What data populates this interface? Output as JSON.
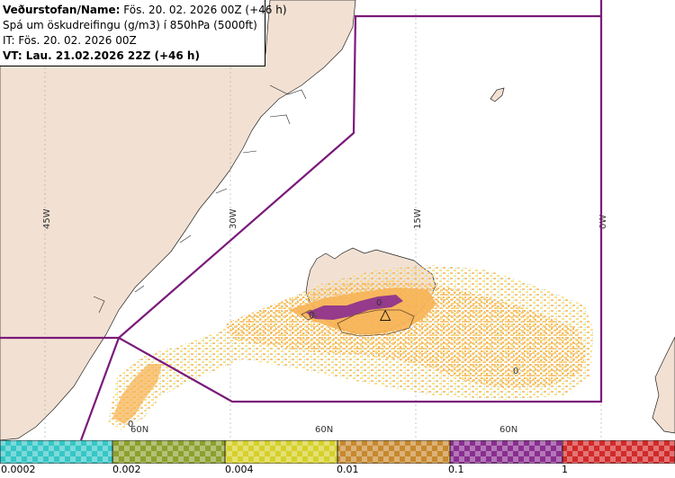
{
  "header": {
    "line1_prefix": "Veðurstofan/Name:",
    "line1_value": " Fös. 20. 02. 2026 00Z (+46 h)",
    "line2": "Spá um öskudreifingu (g/m3) í 850hPa (5000ft)",
    "line3": "IT: Fös. 20. 02. 2026 00Z",
    "line4": "VT: Lau. 21.02.2026 22Z (+46 h)"
  },
  "map": {
    "longitude_labels": [
      "45W",
      "30W",
      "15W",
      "0W"
    ],
    "latitude_labels": [
      "60N",
      "60N",
      "60N"
    ],
    "volcano_marker": "△",
    "contour_labels": [
      "0",
      "0",
      "0",
      "0"
    ]
  },
  "legend": {
    "bins": [
      {
        "from": "0.0002",
        "to": "0.002",
        "color": "#36c6c6"
      },
      {
        "from": "0.002",
        "to": "0.004",
        "color": "#8ca02e"
      },
      {
        "from": "0.004",
        "to": "0.01",
        "color": "#d6d02a"
      },
      {
        "from": "0.01",
        "to": "0.1",
        "color": "#c7882e"
      },
      {
        "from": "0.1",
        "to": "1",
        "color": "#8a2e90"
      },
      {
        "from": "1",
        "to": "",
        "color": "#d22a2a"
      }
    ],
    "tick_labels": [
      "0.0002",
      "0.002",
      "0.004",
      "0.01",
      "0.1",
      "1"
    ]
  },
  "colors": {
    "land": "#f2e1d3",
    "sea": "#ffffff",
    "boundary": "#7a1a7a",
    "ash_low": "#f7dc6a",
    "ash_mid": "#f7b455",
    "ash_high": "#8a2e90",
    "ash_trace": "#7fe3e3"
  }
}
